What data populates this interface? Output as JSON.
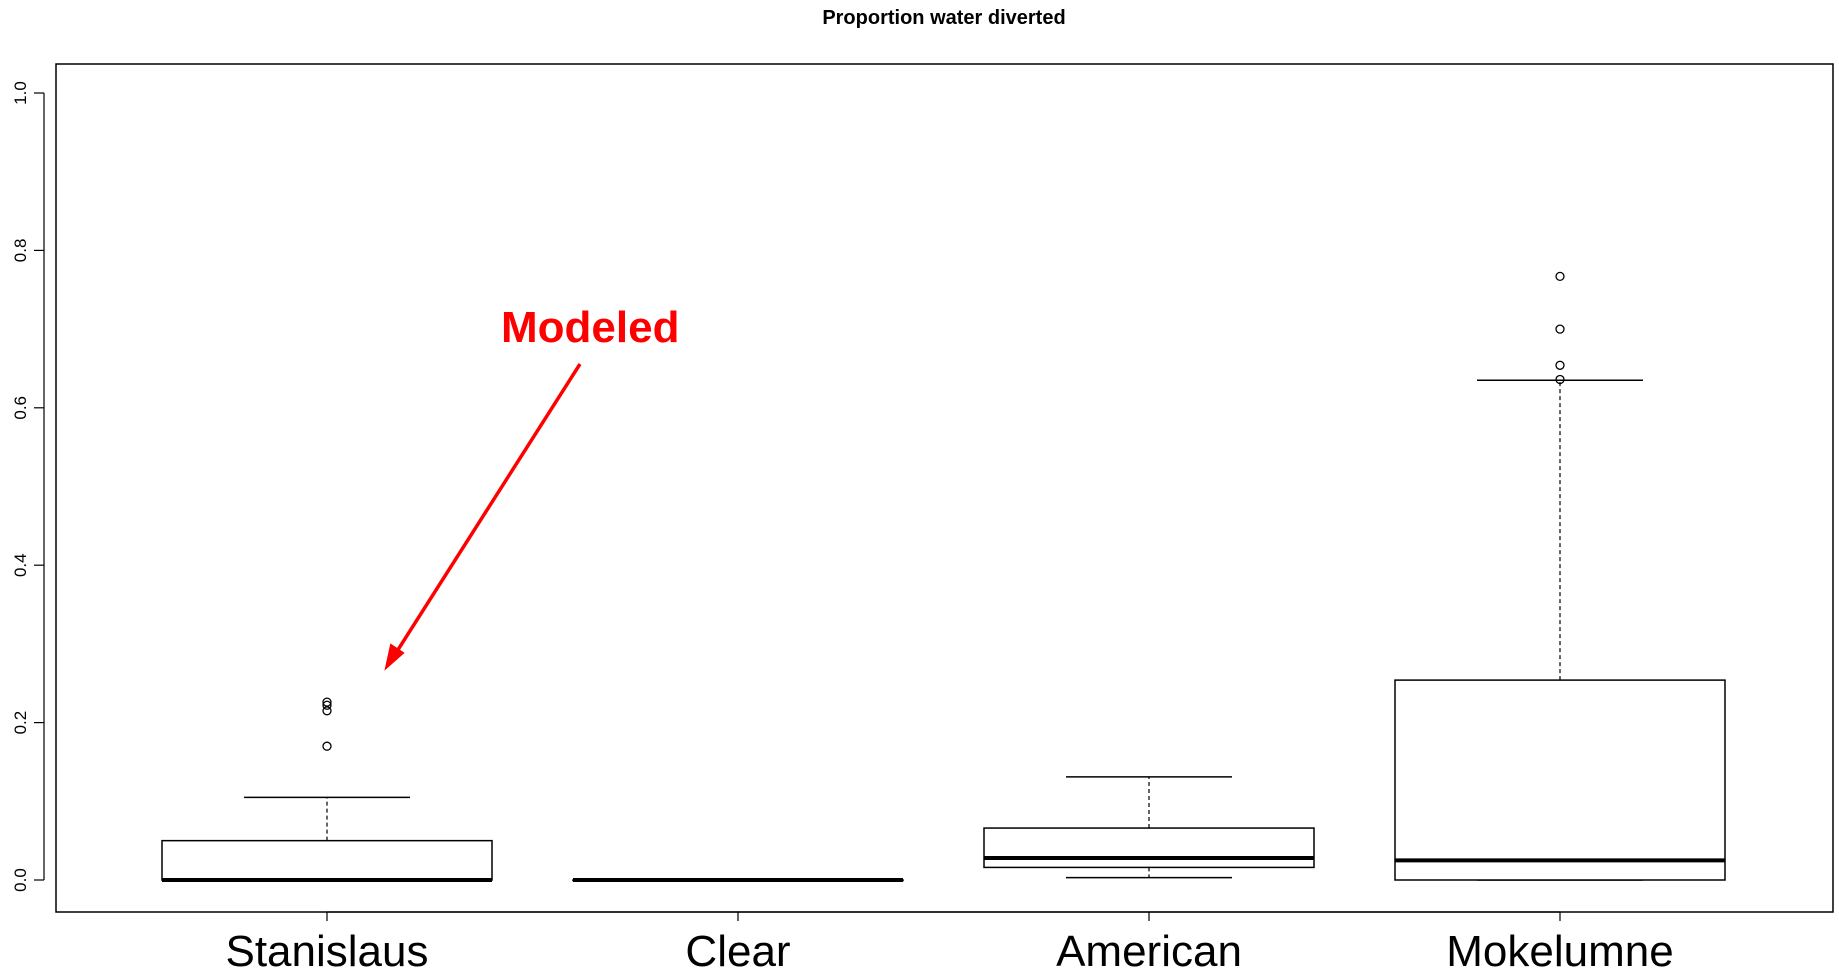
{
  "chart_data": {
    "type": "box",
    "title": "Proportion water diverted",
    "xlabel": "",
    "ylabel": "",
    "ylim": [
      0,
      1.0
    ],
    "yticks": [
      "0.0",
      "0.2",
      "0.4",
      "0.6",
      "0.8",
      "1.0"
    ],
    "grid": false,
    "categories": [
      "Stanislaus",
      "Clear",
      "American",
      "Mokelumne"
    ],
    "boxes": [
      {
        "name": "Stanislaus",
        "min": 0.0,
        "q1": 0.0,
        "median": 0.0,
        "q3": 0.05,
        "max": 0.105,
        "outliers": [
          0.17,
          0.215,
          0.222,
          0.226
        ]
      },
      {
        "name": "Clear",
        "min": 0.0,
        "q1": 0.0,
        "median": 0.0,
        "q3": 0.0,
        "max": 0.0,
        "outliers": []
      },
      {
        "name": "American",
        "min": 0.003,
        "q1": 0.016,
        "median": 0.028,
        "q3": 0.066,
        "max": 0.131,
        "outliers": []
      },
      {
        "name": "Mokelumne",
        "min": 0.0,
        "q1": 0.0,
        "median": 0.025,
        "q3": 0.254,
        "max": 0.635,
        "outliers": [
          0.636,
          0.654,
          0.7,
          0.767
        ]
      }
    ],
    "annotation": {
      "text": "Modeled",
      "color": "#ff0000",
      "points_to": "Stanislaus"
    }
  }
}
